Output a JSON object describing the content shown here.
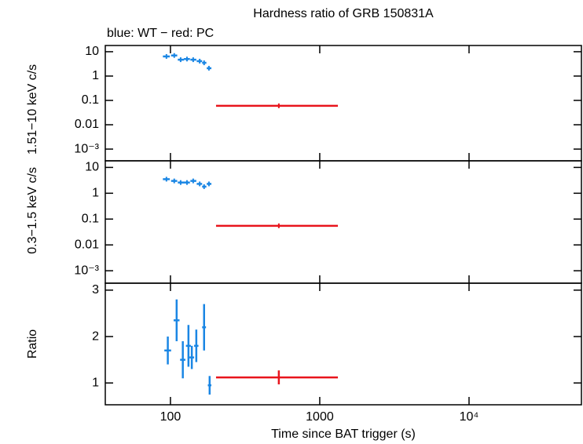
{
  "chart_data": [
    {
      "type": "scatter",
      "title": "Hardness ratio of GRB 150831A",
      "subtitle": "blue: WT − red: PC",
      "ylabel": "1.51−10 keV c/s",
      "log_y": true,
      "ylim": [
        0.00033,
        18
      ],
      "yticks": [
        10,
        1,
        0.1,
        0.01,
        {
          "value": 0.001,
          "label": "10⁻³"
        }
      ],
      "series": [
        {
          "color": "#1a86e4",
          "x": [
            94,
            106,
            117,
            129,
            142,
            157,
            168,
            181
          ],
          "xmin": [
            89,
            101,
            112,
            123,
            136,
            150,
            163,
            175
          ],
          "xmax": [
            99,
            111,
            123,
            135,
            149,
            163,
            174,
            188
          ],
          "values": [
            6.4,
            7,
            4.7,
            5,
            4.7,
            4.1,
            3.5,
            2.1
          ]
        },
        {
          "color": "#e8141c",
          "x": [
            532
          ],
          "xmin": [
            202
          ],
          "xmax": [
            1323
          ],
          "values": [
            0.06
          ]
        }
      ]
    },
    {
      "type": "scatter",
      "ylabel": "0.3−1.5 keV c/s",
      "log_y": true,
      "ylim": [
        0.00033,
        18
      ],
      "yticks": [
        10,
        1,
        0.1,
        0.01,
        {
          "value": 0.001,
          "label": "10⁻³"
        }
      ],
      "series": [
        {
          "color": "#1a86e4",
          "x": [
            94,
            106,
            117,
            129,
            142,
            157,
            168,
            181
          ],
          "xmin": [
            89,
            101,
            112,
            123,
            136,
            150,
            163,
            175
          ],
          "xmax": [
            99,
            111,
            123,
            135,
            149,
            163,
            174,
            188
          ],
          "values": [
            3.5,
            3,
            2.6,
            2.6,
            3,
            2.3,
            1.8,
            2.3
          ]
        },
        {
          "color": "#e8141c",
          "x": [
            532
          ],
          "xmin": [
            202
          ],
          "xmax": [
            1323
          ],
          "values": [
            0.055
          ]
        }
      ]
    },
    {
      "type": "scatter",
      "ylabel": "Ratio",
      "xlabel": "Time since BAT trigger (s)",
      "log_x": true,
      "xlim": [
        36.6,
        56600
      ],
      "xticks": [
        100,
        {
          "value": 1000,
          "label": "1000"
        },
        {
          "value": 10000,
          "label": "10⁴"
        }
      ],
      "ylim": [
        0.53,
        3.15
      ],
      "yticks": [
        1,
        2,
        3
      ],
      "series": [
        {
          "color": "#1a86e4",
          "x": [
            96,
            110,
            121,
            132,
            139,
            149,
            168,
            183
          ],
          "xmin": [
            91,
            105,
            116,
            127,
            134,
            144,
            163,
            178
          ],
          "xmax": [
            101,
            115,
            126,
            137,
            144,
            154,
            173,
            188
          ],
          "values": [
            1.7,
            2.35,
            1.5,
            1.8,
            1.55,
            1.8,
            2.2,
            0.95
          ],
          "yerr": [
            0.3,
            0.45,
            0.4,
            0.45,
            0.25,
            0.35,
            0.5,
            0.2
          ]
        },
        {
          "color": "#e8141c",
          "x": [
            532
          ],
          "xmin": [
            202
          ],
          "xmax": [
            1323
          ],
          "values": [
            1.12
          ],
          "yerr": [
            0.15
          ]
        }
      ]
    }
  ]
}
